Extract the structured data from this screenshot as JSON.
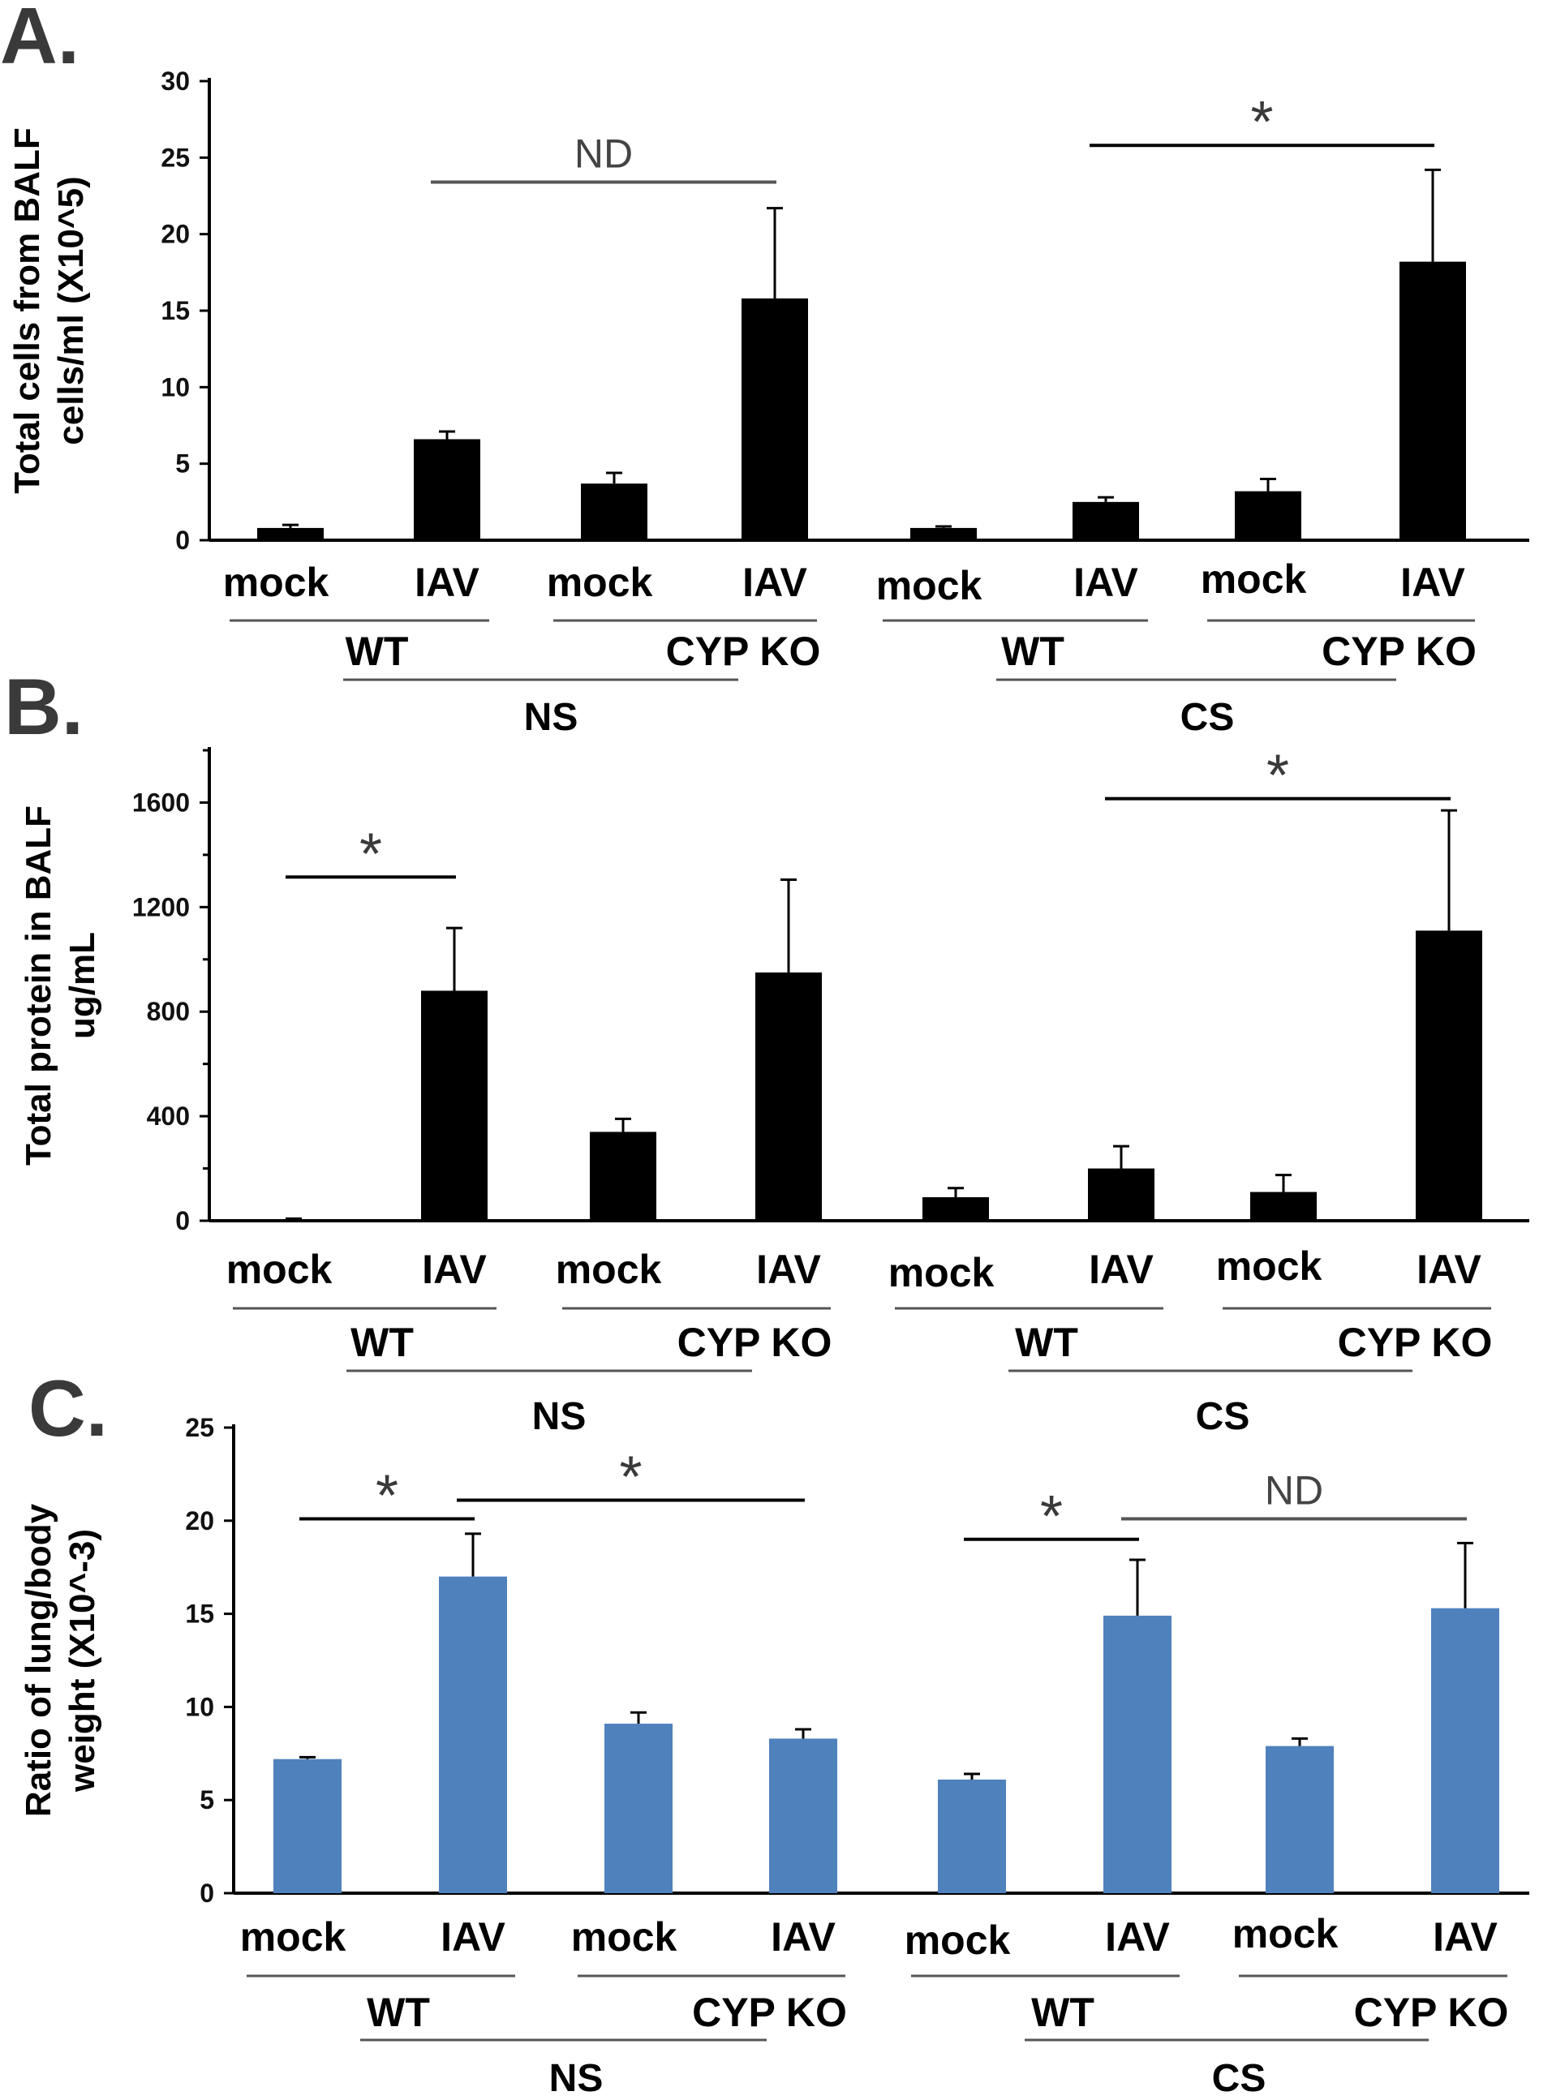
{
  "figure": {
    "bar_colors": {
      "black": "#000000",
      "blue": "#4f81bd"
    },
    "line_color": "#555555"
  },
  "chart_data": [
    {
      "panel": "A.",
      "type": "bar",
      "ylabel_lines": [
        "Total cells from BALF",
        "cells/ml (X10^5)"
      ],
      "ylim": [
        0,
        30
      ],
      "yticks": [
        0,
        5,
        10,
        15,
        20,
        25,
        30
      ],
      "categories": [
        "mock",
        "IAV",
        "mock",
        "IAV",
        "mock",
        "IAV",
        "mock",
        "IAV"
      ],
      "genotypes": [
        "WT",
        "CYP KO",
        "WT",
        "CYP KO"
      ],
      "conditions": [
        "NS",
        "CS"
      ],
      "values": [
        0.8,
        6.6,
        3.7,
        15.8,
        0.8,
        2.5,
        3.2,
        18.2
      ],
      "errors": [
        0.2,
        0.5,
        0.7,
        5.9,
        0.1,
        0.3,
        0.8,
        6.0
      ],
      "significance": [
        {
          "label": "ND",
          "from": 1,
          "to": 3,
          "y": 23.4
        },
        {
          "label": "*",
          "from": 5,
          "to": 7,
          "y": 25.8
        }
      ]
    },
    {
      "panel": "B.",
      "type": "bar",
      "ylabel_lines": [
        "Total protein in BALF",
        "ug/mL"
      ],
      "ylim": [
        0,
        1800
      ],
      "yticks": [
        0,
        400,
        800,
        1200,
        1600
      ],
      "categories": [
        "mock",
        "IAV",
        "mock",
        "IAV",
        "mock",
        "IAV",
        "mock",
        "IAV"
      ],
      "genotypes": [
        "WT",
        "CYP KO",
        "WT",
        "CYP KO"
      ],
      "conditions": [
        "NS",
        "CS"
      ],
      "values": [
        5,
        880,
        340,
        950,
        90,
        200,
        110,
        1110
      ],
      "errors": [
        3,
        240,
        50,
        355,
        35,
        85,
        65,
        460
      ],
      "significance": [
        {
          "label": "*",
          "from": 0,
          "to": 1,
          "y": 1315
        },
        {
          "label": "*",
          "from": 5,
          "to": 7,
          "y": 1615
        }
      ]
    },
    {
      "panel": "C.",
      "type": "bar",
      "ylabel_lines": [
        "Ratio of lung/body",
        "weight (X10^-3)"
      ],
      "ylim": [
        0,
        25
      ],
      "yticks": [
        0,
        5,
        10,
        15,
        20,
        25
      ],
      "categories": [
        "mock",
        "IAV",
        "mock",
        "IAV",
        "mock",
        "IAV",
        "mock",
        "IAV"
      ],
      "genotypes": [
        "WT",
        "CYP KO",
        "WT",
        "CYP KO"
      ],
      "conditions": [
        "NS",
        "CS"
      ],
      "values": [
        7.2,
        17.0,
        9.1,
        8.3,
        6.1,
        14.9,
        7.9,
        15.3
      ],
      "errors": [
        0.1,
        2.3,
        0.6,
        0.5,
        0.3,
        3.0,
        0.4,
        3.5
      ],
      "significance": [
        {
          "label": "*",
          "from": 0,
          "to": 1,
          "y": 20.1
        },
        {
          "label": "*",
          "from": 1,
          "to": 3,
          "y": 21.1
        },
        {
          "label": "*",
          "from": 4,
          "to": 5,
          "y": 19.0
        },
        {
          "label": "ND",
          "from": 5,
          "to": 7,
          "y": 20.1
        }
      ]
    }
  ]
}
